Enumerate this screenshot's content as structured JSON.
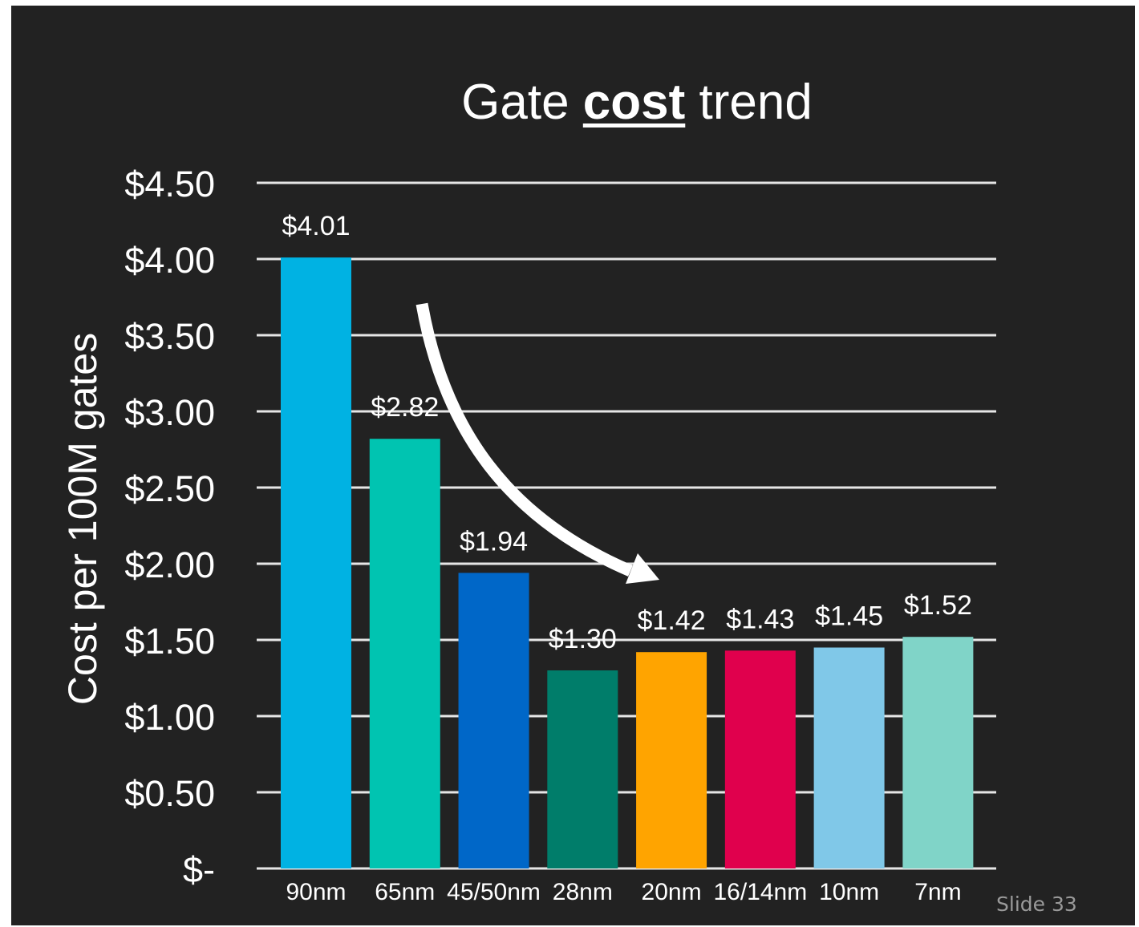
{
  "slide": {
    "background": "#222222",
    "footer": "Slide 33"
  },
  "chart_data": {
    "type": "bar",
    "title_parts": [
      "Gate ",
      "cost",
      " trend"
    ],
    "ylabel": "Cost per 100M gates",
    "xlabel": "",
    "categories": [
      "90nm",
      "65nm",
      "45/50nm",
      "28nm",
      "20nm",
      "16/14nm",
      "10nm",
      "7nm"
    ],
    "values": [
      4.01,
      2.82,
      1.94,
      1.3,
      1.42,
      1.43,
      1.45,
      1.52
    ],
    "data_labels": [
      "$4.01",
      "$2.82",
      "$1.94",
      "$1.30",
      "$1.42",
      "$1.43",
      "$1.45",
      "$1.52"
    ],
    "colors": [
      "#00b2e3",
      "#00c4b1",
      "#0067c8",
      "#007d6a",
      "#ffa400",
      "#e0004d",
      "#80c8e8",
      "#80d4c8"
    ],
    "ylim": [
      0,
      4.5
    ],
    "ytick_values": [
      0,
      0.5,
      1.0,
      1.5,
      2.0,
      2.5,
      3.0,
      3.5,
      4.0,
      4.5
    ],
    "ytick_labels": [
      "$-",
      "$0.50",
      "$1.00",
      "$1.50",
      "$2.00",
      "$2.50",
      "$3.00",
      "$3.50",
      "$4.00",
      "$4.50"
    ],
    "grid": true,
    "gridline_color": "#e6e6e6",
    "annotation": "downward-trend-arrow"
  }
}
